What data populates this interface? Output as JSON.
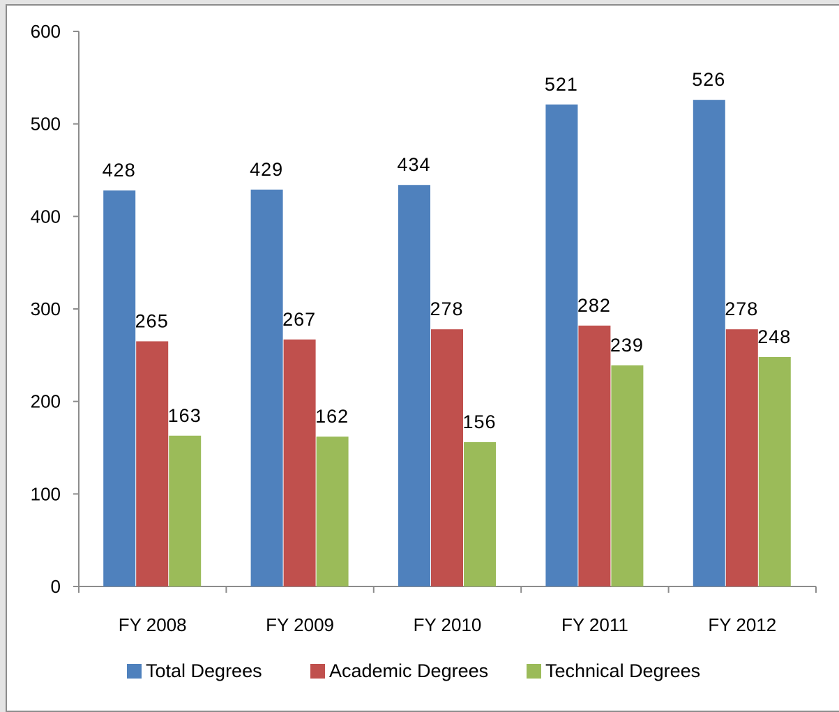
{
  "chart_data": {
    "type": "bar",
    "categories": [
      "FY 2008",
      "FY 2009",
      "FY 2010",
      "FY 2011",
      "FY 2012"
    ],
    "series": [
      {
        "name": "Total Degrees",
        "values": [
          428,
          429,
          434,
          521,
          526
        ],
        "color": "#4f81bd"
      },
      {
        "name": "Academic Degrees",
        "values": [
          265,
          267,
          278,
          282,
          278
        ],
        "color": "#c0504d"
      },
      {
        "name": "Technical Degrees",
        "values": [
          163,
          162,
          156,
          239,
          248
        ],
        "color": "#9bbb59"
      }
    ],
    "yticks": [
      0,
      100,
      200,
      300,
      400,
      500,
      600
    ],
    "ylim": [
      0,
      600
    ],
    "grid": false,
    "legend_position": "bottom",
    "data_labels": true
  }
}
